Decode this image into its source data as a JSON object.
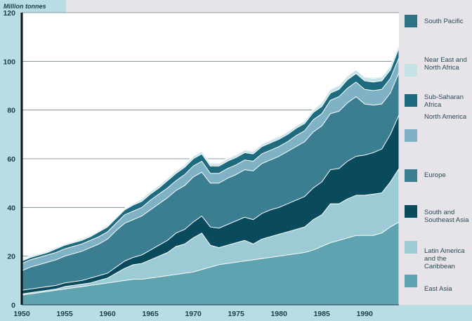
{
  "chart_data": {
    "type": "area",
    "stacked": true,
    "title": "",
    "unit_label": "Million tonnes",
    "xlabel": "",
    "ylabel": "Million tonnes",
    "xlim": [
      1950,
      1994
    ],
    "ylim": [
      0,
      120
    ],
    "grid": "horizontal",
    "legend_position": "right",
    "x_ticks": [
      "1950",
      "1955",
      "1960",
      "1965",
      "1970",
      "1975",
      "1980",
      "1985",
      "1990"
    ],
    "y_ticks": [
      "0",
      "20",
      "40",
      "60",
      "80",
      "100",
      "120"
    ],
    "x": [
      1950,
      1951,
      1952,
      1953,
      1954,
      1955,
      1956,
      1957,
      1958,
      1959,
      1960,
      1961,
      1962,
      1963,
      1964,
      1965,
      1966,
      1967,
      1968,
      1969,
      1970,
      1971,
      1972,
      1973,
      1974,
      1975,
      1976,
      1977,
      1978,
      1979,
      1980,
      1981,
      1982,
      1983,
      1984,
      1985,
      1986,
      1987,
      1988,
      1989,
      1990,
      1991,
      1992,
      1993,
      1994
    ],
    "series": [
      {
        "name": "East Asia",
        "color": "#5fa3b1",
        "values": [
          4,
          4.5,
          5,
          5.5,
          6,
          6.5,
          7,
          7.5,
          8,
          8.5,
          9,
          9.5,
          10,
          10.5,
          10.5,
          11,
          11.5,
          12,
          12.5,
          13,
          13.5,
          14.5,
          15.5,
          16.5,
          17,
          17.5,
          18,
          18.5,
          19,
          19.5,
          20,
          20.5,
          21,
          21.5,
          22.5,
          24,
          25.5,
          26.5,
          27.5,
          28.5,
          28.5,
          28.5,
          29.5,
          32,
          34
        ]
      },
      {
        "name": "Latin America and the Caribbean",
        "color": "#9ccbd6",
        "values": [
          0.5,
          0.5,
          0.5,
          0.5,
          0.5,
          1,
          1,
          1,
          1,
          1.5,
          2,
          3.5,
          5,
          6,
          6.5,
          7.5,
          8.5,
          9.5,
          11.5,
          12,
          14,
          15,
          9,
          7,
          7.5,
          8,
          8.5,
          6.5,
          8,
          8.5,
          9,
          9.5,
          10,
          10.5,
          12.5,
          13,
          16,
          15,
          16,
          16.5,
          16.5,
          17,
          16.5,
          18.5,
          22
        ]
      },
      {
        "name": "South and Southeast Asia",
        "color": "#0a4a5d",
        "values": [
          1.5,
          1.5,
          1.5,
          1.5,
          1.5,
          1.5,
          1.5,
          1.5,
          2,
          2,
          2,
          2.5,
          3,
          3,
          3.5,
          4,
          4.5,
          5,
          5.5,
          6,
          6.5,
          7,
          7.5,
          8,
          8.5,
          9,
          9.5,
          10,
          10.5,
          11,
          11,
          11.5,
          12,
          12.5,
          13,
          13.5,
          14,
          14.5,
          15.5,
          16,
          16.5,
          17,
          18,
          19.5,
          22
        ]
      },
      {
        "name": "Europe",
        "color": "#3b7e92",
        "values": [
          8,
          9,
          9.5,
          10,
          10.5,
          11,
          11.5,
          12,
          12.5,
          13,
          14,
          15,
          15.5,
          15.5,
          16,
          16.5,
          17,
          17.5,
          17.5,
          18,
          18.5,
          18,
          18,
          18.5,
          19,
          19,
          19.5,
          20,
          20.5,
          20.5,
          21,
          21.5,
          22,
          22.5,
          23,
          23,
          23,
          23.5,
          24,
          24.5,
          21,
          19.5,
          18.5,
          17,
          17.5
        ]
      },
      {
        "name": "North America",
        "color": "#7fb2c4",
        "values": [
          3,
          3,
          3,
          3,
          3,
          3,
          3,
          3,
          3,
          3,
          3,
          3,
          3.5,
          3.5,
          3.5,
          4,
          4,
          4,
          4,
          4.5,
          4.5,
          4.5,
          4,
          4,
          4,
          4,
          4,
          4,
          4,
          4,
          4,
          4,
          4.5,
          4.5,
          5,
          5,
          5.5,
          6,
          6,
          6,
          6,
          6,
          6,
          6,
          6
        ]
      },
      {
        "name": "Sub-Saharan Africa",
        "color": "#1e6a7e",
        "values": [
          1,
          1,
          1,
          1,
          1.5,
          1.5,
          1.5,
          1.5,
          1.5,
          2,
          2,
          2,
          2,
          2.5,
          2.5,
          2.5,
          2.5,
          3,
          3,
          3,
          3,
          3,
          3,
          3,
          3,
          3,
          3,
          3,
          3,
          3,
          3,
          3,
          3,
          3,
          3,
          3,
          3,
          3,
          3.5,
          3.5,
          3.5,
          3.5,
          3.5,
          3.5,
          4
        ]
      },
      {
        "name": "Near East and North Africa",
        "color": "#c4e2e8",
        "values": [
          0.5,
          0.5,
          0.5,
          0.5,
          0.5,
          0.5,
          0.5,
          0.5,
          0.5,
          0.5,
          0.5,
          0.5,
          0.5,
          0.5,
          1,
          1,
          1,
          1,
          1,
          1,
          1,
          1,
          1,
          1,
          1,
          1,
          1,
          1,
          1,
          1,
          1,
          1,
          1,
          1,
          1,
          1.5,
          1.5,
          1.5,
          1.5,
          1.5,
          1.5,
          1.5,
          1.5,
          1.5,
          1.5
        ]
      },
      {
        "name": "South Pacific",
        "color": "#2e7288",
        "values": [
          0.3,
          0.3,
          0.3,
          0.3,
          0.3,
          0.3,
          0.3,
          0.3,
          0.3,
          0.3,
          0.3,
          0.3,
          0.3,
          0.3,
          0.3,
          0.3,
          0.3,
          0.3,
          0.3,
          0.3,
          0.3,
          0.3,
          0.3,
          0.3,
          0.3,
          0.3,
          0.3,
          0.3,
          0.3,
          0.3,
          0.3,
          0.3,
          0.3,
          0.3,
          0.3,
          0.3,
          0.3,
          0.3,
          0.3,
          0.3,
          0.3,
          0.3,
          0.3,
          0.3,
          0.3
        ]
      }
    ]
  }
}
